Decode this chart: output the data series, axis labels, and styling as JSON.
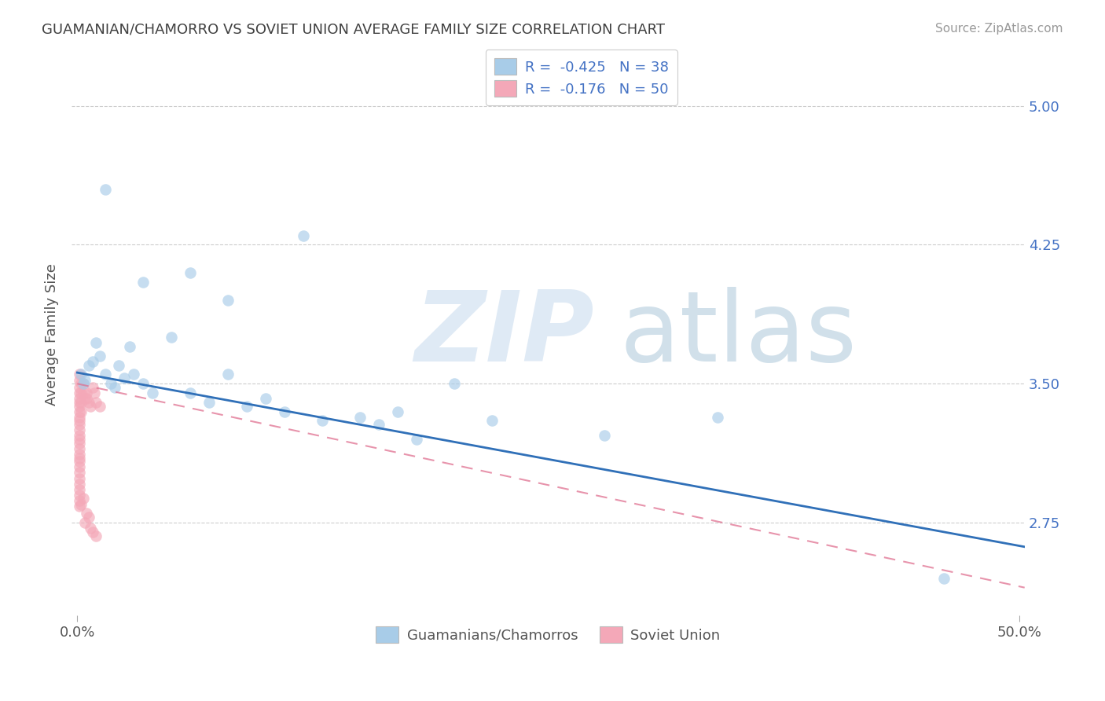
{
  "title": "GUAMANIAN/CHAMORRO VS SOVIET UNION AVERAGE FAMILY SIZE CORRELATION CHART",
  "source": "Source: ZipAtlas.com",
  "ylabel": "Average Family Size",
  "yticks": [
    2.75,
    3.5,
    4.25,
    5.0
  ],
  "xlim": [
    -0.003,
    0.503
  ],
  "ylim": [
    2.25,
    5.28
  ],
  "legend_r1": "R =  -0.425   N = 38",
  "legend_r2": "R =  -0.176   N = 50",
  "color_blue": "#a8cce8",
  "color_pink": "#f4a8b8",
  "color_blue_line": "#3070b8",
  "color_pink_line": "#e07090",
  "blue_scatter_x": [
    0.002,
    0.003,
    0.004,
    0.006,
    0.008,
    0.01,
    0.012,
    0.015,
    0.018,
    0.02,
    0.022,
    0.025,
    0.028,
    0.03,
    0.035,
    0.04,
    0.05,
    0.06,
    0.07,
    0.08,
    0.09,
    0.1,
    0.11,
    0.13,
    0.15,
    0.16,
    0.17,
    0.18,
    0.2,
    0.22,
    0.28,
    0.34,
    0.46,
    0.12,
    0.06,
    0.035,
    0.015,
    0.08
  ],
  "blue_scatter_y": [
    3.55,
    3.5,
    3.52,
    3.6,
    3.62,
    3.72,
    3.65,
    3.55,
    3.5,
    3.48,
    3.6,
    3.53,
    3.7,
    3.55,
    3.5,
    3.45,
    3.75,
    3.45,
    3.4,
    3.55,
    3.38,
    3.42,
    3.35,
    3.3,
    3.32,
    3.28,
    3.35,
    3.2,
    3.5,
    3.3,
    3.22,
    3.32,
    2.45,
    4.3,
    4.1,
    4.05,
    4.55,
    3.95
  ],
  "pink_scatter_x": [
    0.001,
    0.001,
    0.001,
    0.001,
    0.001,
    0.001,
    0.001,
    0.001,
    0.001,
    0.001,
    0.001,
    0.001,
    0.001,
    0.001,
    0.001,
    0.001,
    0.001,
    0.001,
    0.001,
    0.001,
    0.001,
    0.001,
    0.001,
    0.001,
    0.001,
    0.002,
    0.002,
    0.002,
    0.002,
    0.003,
    0.003,
    0.004,
    0.005,
    0.005,
    0.006,
    0.007,
    0.008,
    0.009,
    0.01,
    0.012,
    0.002,
    0.003,
    0.004,
    0.005,
    0.006,
    0.007,
    0.008,
    0.01,
    0.001,
    0.001
  ],
  "pink_scatter_y": [
    3.55,
    3.52,
    3.48,
    3.45,
    3.42,
    3.4,
    3.38,
    3.35,
    3.32,
    3.3,
    3.28,
    3.25,
    3.22,
    3.2,
    3.18,
    3.15,
    3.12,
    3.1,
    3.08,
    3.05,
    3.02,
    2.99,
    2.96,
    2.93,
    2.9,
    3.5,
    3.45,
    3.4,
    3.35,
    3.5,
    3.45,
    3.42,
    3.45,
    3.42,
    3.4,
    3.38,
    3.48,
    3.45,
    3.4,
    3.38,
    2.85,
    2.88,
    2.75,
    2.8,
    2.78,
    2.72,
    2.7,
    2.68,
    2.87,
    2.84
  ],
  "blue_trendline_x": [
    0.0,
    0.503
  ],
  "blue_trendline_y": [
    3.56,
    2.62
  ],
  "pink_trendline_x": [
    0.0,
    0.503
  ],
  "pink_trendline_y": [
    3.5,
    2.4
  ]
}
